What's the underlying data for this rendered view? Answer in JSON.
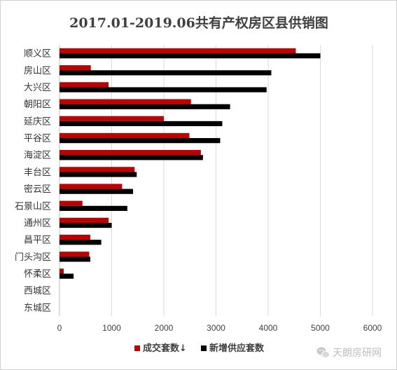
{
  "chart_data": {
    "type": "bar",
    "orientation": "horizontal",
    "title": "2017.01-2019.06共有产权房区县供销图",
    "categories": [
      "顺义区",
      "房山区",
      "大兴区",
      "朝阳区",
      "延庆区",
      "平谷区",
      "海淀区",
      "丰台区",
      "密云区",
      "石景山区",
      "通州区",
      "昌平区",
      "门头沟区",
      "怀柔区",
      "西城区",
      "东城区"
    ],
    "series": [
      {
        "name": "成交套数↓",
        "color": "#c00000",
        "values": [
          4530,
          600,
          940,
          2520,
          2000,
          2490,
          2710,
          1440,
          1200,
          440,
          940,
          590,
          570,
          80,
          0,
          0
        ]
      },
      {
        "name": "新增供应套数",
        "color": "#000000",
        "values": [
          5000,
          4060,
          3970,
          3270,
          3120,
          3080,
          2750,
          1480,
          1410,
          1300,
          1000,
          800,
          590,
          270,
          0,
          0
        ]
      }
    ],
    "xlim": [
      0,
      6000
    ],
    "xticks": [
      "0",
      "1000",
      "2000",
      "3000",
      "4000",
      "5000",
      "6000"
    ],
    "grid": true,
    "legend_position": "bottom"
  },
  "watermark": {
    "icon": "wechat-icon",
    "text": "天朗房研网"
  }
}
